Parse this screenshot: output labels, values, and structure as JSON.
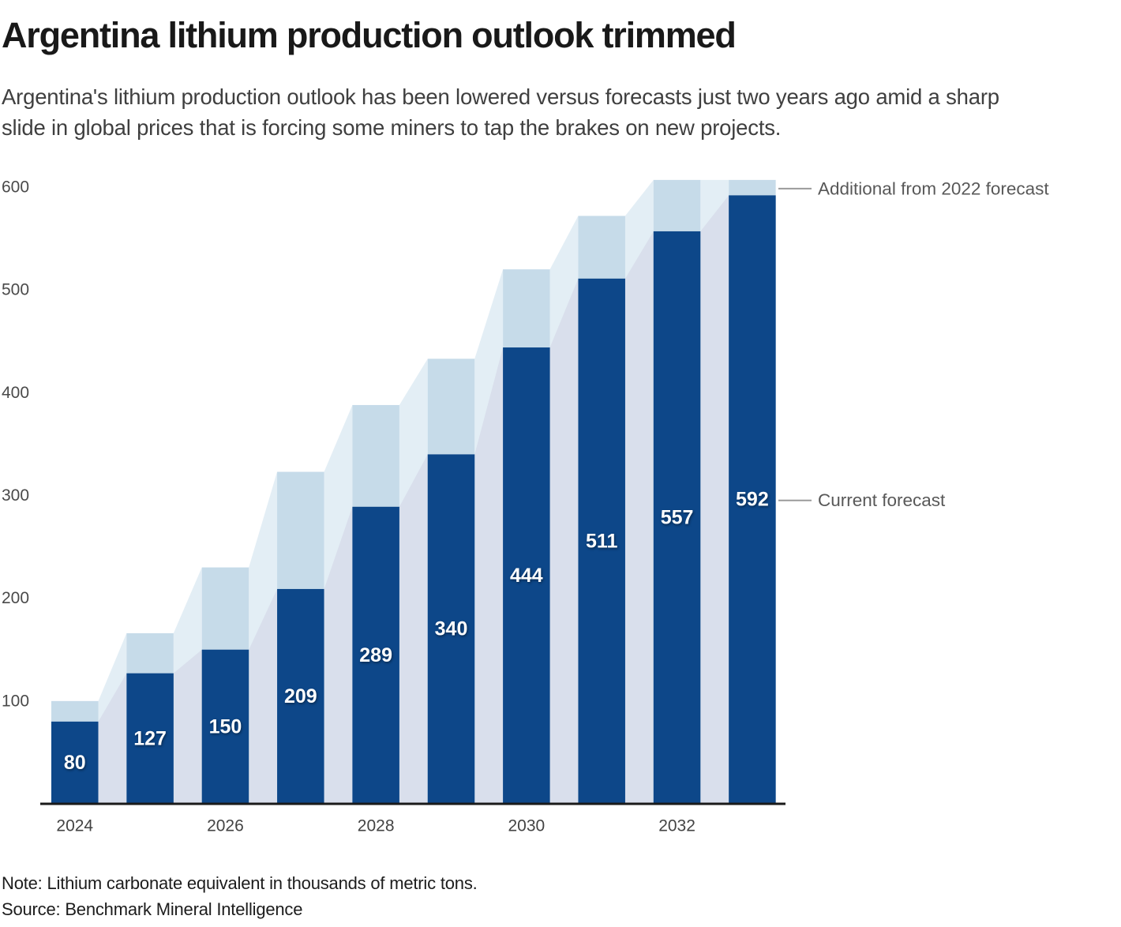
{
  "header": {
    "title": "Argentina lithium production outlook trimmed",
    "subtitle": "Argentina's lithium production outlook has been lowered versus forecasts just two years ago amid a sharp slide in global prices that is forcing some miners to tap the brakes on new projects.",
    "subtitle_lines": [
      "Argentina's lithium production outlook has been lowered versus forecasts just two years ago amid a sharp",
      "slide in global prices that is forcing some miners to tap the brakes on new projects."
    ]
  },
  "chart_data": {
    "type": "bar",
    "categories": [
      "2024",
      "2025",
      "2026",
      "2027",
      "2028",
      "2029",
      "2030",
      "2031",
      "2032",
      "2033"
    ],
    "series": [
      {
        "name": "Current forecast",
        "values": [
          80,
          127,
          150,
          209,
          289,
          340,
          444,
          511,
          557,
          592
        ],
        "color": "#0d4789",
        "labeled": true
      },
      {
        "name": "2022 forecast total (light bars, estimated from chart)",
        "values": [
          100,
          166,
          230,
          323,
          388,
          433,
          520,
          572,
          607,
          607
        ],
        "color": "#c6dbe9",
        "labeled": false,
        "estimated": true
      }
    ],
    "bar_labels": [
      "80",
      "127",
      "150",
      "209",
      "289",
      "340",
      "444",
      "511",
      "557",
      "592"
    ],
    "x_tick_labels": [
      "2024",
      "2026",
      "2028",
      "2030",
      "2032"
    ],
    "y_ticks": [
      100,
      200,
      300,
      400,
      500,
      600
    ],
    "ylim": [
      0,
      640
    ],
    "grid": false,
    "legend_position": "right-callouts",
    "annotations": {
      "additional_label": "Additional from 2022 forecast",
      "current_label": "Current forecast"
    }
  },
  "footer": {
    "note": "Note: Lithium carbonate equivalent in thousands of metric tons.",
    "source": "Source: Benchmark Mineral Intelligence"
  },
  "colors": {
    "bar_dark": "#0d4789",
    "bar_light": "#c6dbe9",
    "connector_dark": "#d9dfec",
    "connector_light": "#e3eef5",
    "axis_line": "#1a1a1a",
    "legend_line": "#9a9a9a",
    "value_label_text": "#ffffff"
  }
}
